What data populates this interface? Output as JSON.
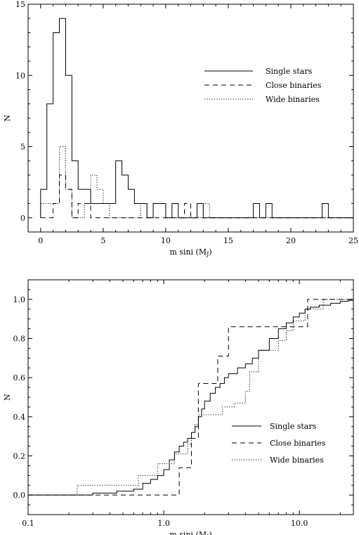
{
  "chart_data": [
    {
      "type": "histogram",
      "xlabel": "m sini (M",
      "xlabel_sub": "J",
      "xlabel_close": ")",
      "ylabel": "N",
      "xlim": [
        -1,
        25
      ],
      "ylim": [
        -1,
        15
      ],
      "xticks": [
        0,
        5,
        10,
        15,
        20,
        25
      ],
      "yticks": [
        0,
        5,
        10,
        15
      ],
      "xtick_labels": [
        "0",
        "5",
        "10",
        "15",
        "20",
        "25"
      ],
      "ytick_labels": [
        "0",
        "5",
        "10",
        "15"
      ],
      "legend_position": "upper-right",
      "series": [
        {
          "name": "Single stars",
          "style": "solid",
          "edges": [
            0,
            0.5,
            1,
            1.5,
            2,
            2.5,
            3,
            3.5,
            4,
            4.5,
            5,
            5.5,
            6,
            6.5,
            7,
            7.5,
            8,
            8.5,
            9,
            9.5,
            10,
            10.5,
            11,
            11.5,
            12,
            12.5,
            13,
            13.5,
            14,
            14.5,
            15,
            15.5,
            16,
            16.5,
            17,
            17.5,
            18,
            18.5,
            19,
            19.5,
            20,
            20.5,
            21,
            21.5,
            22,
            22.5,
            23,
            23.5,
            24,
            24.5,
            25
          ],
          "counts": [
            2,
            8,
            13,
            14,
            10,
            4,
            2,
            2,
            1,
            1,
            1,
            1,
            4,
            3,
            2,
            1,
            1,
            0,
            1,
            1,
            0,
            1,
            0,
            0,
            0,
            1,
            0,
            0,
            0,
            0,
            0,
            0,
            0,
            0,
            1,
            0,
            1,
            0,
            0,
            0,
            0,
            0,
            0,
            0,
            0,
            1,
            0,
            0,
            0,
            0
          ]
        },
        {
          "name": "Close binaries",
          "style": "dashed",
          "edges": [
            0,
            0.5,
            1,
            1.5,
            2,
            2.5,
            3,
            3.5,
            4,
            4.5,
            5,
            5.5,
            6,
            6.5,
            7,
            7.5,
            8,
            8.5,
            9,
            9.5,
            10,
            10.5,
            11,
            11.5,
            12,
            12.5,
            13,
            13.5,
            14,
            14.5,
            15,
            15.5,
            16,
            16.5,
            17,
            17.5,
            18,
            18.5,
            19,
            19.5,
            20,
            20.5,
            21,
            21.5,
            22,
            22.5,
            23,
            23.5,
            24,
            24.5,
            25
          ],
          "counts": [
            0,
            0,
            1,
            3,
            2,
            0,
            1,
            1,
            0,
            0,
            0,
            0,
            0,
            0,
            0,
            0,
            0,
            0,
            0,
            0,
            0,
            0,
            0,
            1,
            0,
            0,
            0,
            0,
            0,
            0,
            0,
            0,
            0,
            0,
            0,
            0,
            0,
            0,
            0,
            0,
            0,
            0,
            0,
            0,
            0,
            0,
            0,
            0,
            0,
            0
          ]
        },
        {
          "name": "Wide binaries",
          "style": "dotted",
          "edges": [
            0,
            0.5,
            1,
            1.5,
            2,
            2.5,
            3,
            3.5,
            4,
            4.5,
            5,
            5.5,
            6,
            6.5,
            7,
            7.5,
            8,
            8.5,
            9,
            9.5,
            10,
            10.5,
            11,
            11.5,
            12,
            12.5,
            13,
            13.5,
            14,
            14.5,
            15,
            15.5,
            16,
            16.5,
            17,
            17.5,
            18,
            18.5,
            19,
            19.5,
            20,
            20.5,
            21,
            21.5,
            22,
            22.5,
            23,
            23.5,
            24,
            24.5,
            25
          ],
          "counts": [
            1,
            1,
            1,
            5,
            2,
            0,
            0,
            1,
            3,
            2,
            1,
            0,
            0,
            0,
            0,
            0,
            1,
            0,
            1,
            1,
            0,
            0,
            0,
            0,
            0,
            0,
            1,
            0,
            0,
            0,
            0,
            0,
            0,
            0,
            0,
            0,
            0,
            0,
            0,
            0,
            0,
            0,
            0,
            0,
            0,
            0,
            0,
            0,
            0,
            0
          ]
        }
      ]
    },
    {
      "type": "line",
      "subtype": "cumulative",
      "xscale": "log",
      "xlabel": "m sini (M",
      "xlabel_sub": "J",
      "xlabel_close": ")",
      "ylabel": "N",
      "xlim": [
        0.1,
        25
      ],
      "ylim": [
        -0.1,
        1.1
      ],
      "xticks": [
        0.1,
        1.0,
        10.0
      ],
      "yticks": [
        0.0,
        0.2,
        0.4,
        0.6,
        0.8,
        1.0
      ],
      "xtick_labels": [
        "0.1",
        "1.0",
        "10.0"
      ],
      "ytick_labels": [
        "0.0",
        "0.2",
        "0.4",
        "0.6",
        "0.8",
        "1.0"
      ],
      "legend_position": "lower-right",
      "series": [
        {
          "name": "Single stars",
          "style": "solid",
          "x": [
            0.1,
            0.3,
            0.45,
            0.6,
            0.7,
            0.8,
            0.9,
            1.0,
            1.1,
            1.2,
            1.3,
            1.4,
            1.5,
            1.6,
            1.7,
            1.8,
            1.9,
            2.0,
            2.2,
            2.4,
            2.6,
            2.8,
            3.0,
            3.5,
            4.0,
            4.5,
            5.0,
            6.0,
            7.0,
            8.0,
            9.0,
            10.0,
            11.0,
            12.0,
            14.0,
            17.0,
            20.0,
            23.0,
            25.0
          ],
          "y": [
            0.0,
            0.01,
            0.02,
            0.03,
            0.06,
            0.08,
            0.1,
            0.13,
            0.18,
            0.22,
            0.25,
            0.27,
            0.29,
            0.32,
            0.35,
            0.4,
            0.44,
            0.48,
            0.52,
            0.55,
            0.57,
            0.6,
            0.62,
            0.65,
            0.67,
            0.7,
            0.74,
            0.8,
            0.85,
            0.88,
            0.91,
            0.93,
            0.95,
            0.96,
            0.97,
            0.98,
            0.99,
            0.995,
            1.0
          ]
        },
        {
          "name": "Close binaries",
          "style": "dashed",
          "x": [
            0.1,
            1.3,
            1.6,
            1.8,
            2.5,
            3.0,
            5.0,
            8.0,
            11.5,
            14.0,
            25.0
          ],
          "y": [
            0.0,
            0.14,
            0.29,
            0.57,
            0.71,
            0.86,
            0.86,
            0.86,
            1.0,
            1.0,
            1.0
          ]
        },
        {
          "name": "Wide binaries",
          "style": "dotted",
          "x": [
            0.1,
            0.23,
            0.65,
            0.9,
            1.2,
            1.5,
            1.6,
            1.7,
            1.8,
            2.7,
            3.3,
            4.0,
            4.3,
            5.0,
            7.0,
            8.0,
            9.0,
            11.0,
            12.0,
            15.0,
            25.0
          ],
          "y": [
            0.0,
            0.05,
            0.1,
            0.16,
            0.21,
            0.26,
            0.32,
            0.36,
            0.41,
            0.45,
            0.47,
            0.53,
            0.63,
            0.74,
            0.79,
            0.84,
            0.89,
            0.95,
            0.95,
            1.0,
            1.0
          ]
        }
      ]
    }
  ]
}
